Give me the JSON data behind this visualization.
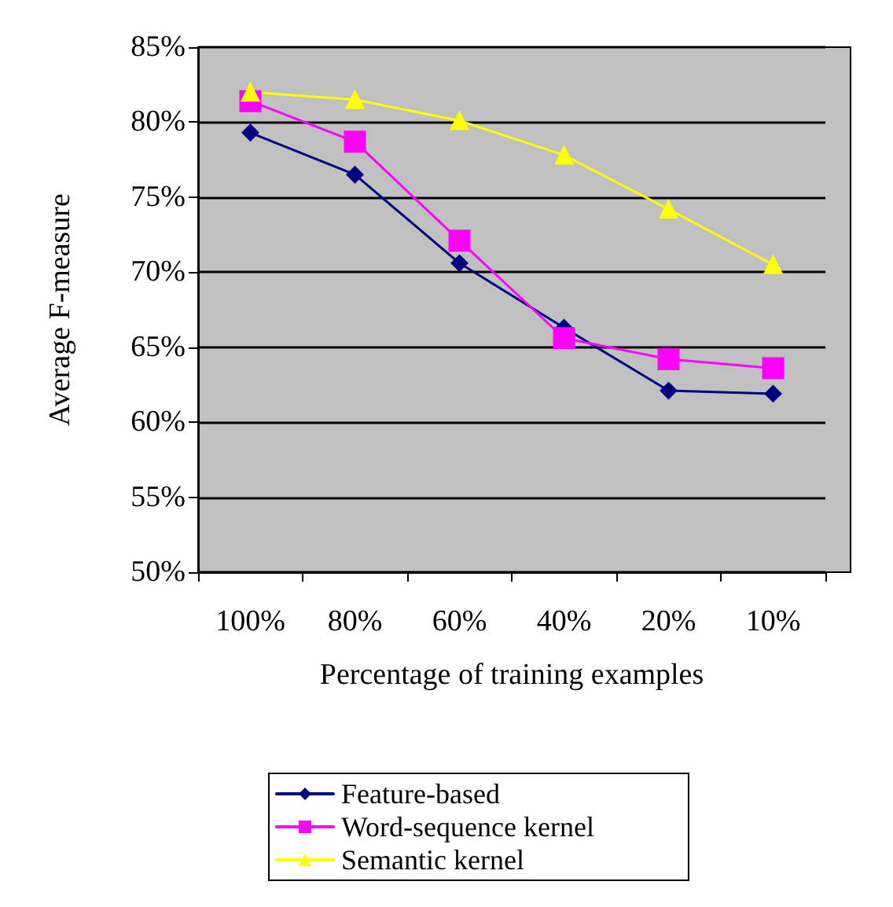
{
  "chart_data": {
    "type": "line",
    "xlabel": "Percentage of training examples",
    "ylabel": "Average F-measure",
    "categories": [
      "100%",
      "80%",
      "60%",
      "40%",
      "20%",
      "10%"
    ],
    "series": [
      {
        "name": "Feature-based",
        "color": "#000080",
        "marker": "diamond",
        "values": [
          79.3,
          76.5,
          70.6,
          66.3,
          62.1,
          61.9
        ]
      },
      {
        "name": "Word-sequence kernel",
        "color": "#ff00ff",
        "marker": "square",
        "values": [
          81.4,
          78.7,
          72.1,
          65.6,
          64.2,
          63.6
        ]
      },
      {
        "name": "Semantic kernel",
        "color": "#ffff00",
        "marker": "triangle",
        "values": [
          82.0,
          81.5,
          80.1,
          77.8,
          74.2,
          70.5
        ]
      }
    ],
    "ylim": [
      50,
      85
    ],
    "yticks": [
      {
        "value": 50,
        "label": "50%"
      },
      {
        "value": 55,
        "label": "55%"
      },
      {
        "value": 60,
        "label": "60%"
      },
      {
        "value": 65,
        "label": "65%"
      },
      {
        "value": 70,
        "label": "70%"
      },
      {
        "value": 75,
        "label": "75%"
      },
      {
        "value": 80,
        "label": "80%"
      },
      {
        "value": 85,
        "label": "85%"
      }
    ],
    "grid": "y",
    "legend": "bottom",
    "line_style": "solid"
  }
}
